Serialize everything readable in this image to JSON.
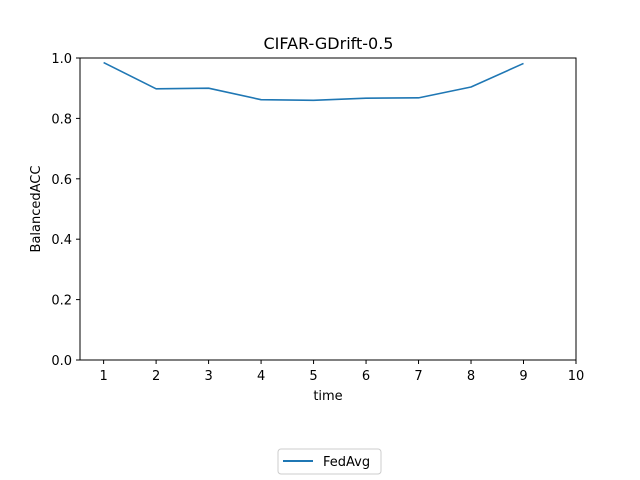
{
  "chart_data": {
    "type": "line",
    "title": "CIFAR-GDrift-0.5",
    "xlabel": "time",
    "ylabel": "BalancedACC",
    "xlim": [
      0.55,
      10
    ],
    "ylim": [
      0,
      1.0
    ],
    "xticks": [
      1,
      2,
      3,
      4,
      5,
      6,
      7,
      8,
      9,
      10
    ],
    "yticks": [
      0.0,
      0.2,
      0.4,
      0.6,
      0.8,
      1.0
    ],
    "ytick_labels": [
      "0.0",
      "0.2",
      "0.4",
      "0.6",
      "0.8",
      "1.0"
    ],
    "grid": false,
    "legend_placement": "bottom-center",
    "series": [
      {
        "name": "FedAvg",
        "color": "#1f77b4",
        "x": [
          1,
          2,
          3,
          4,
          5,
          6,
          7,
          8,
          9
        ],
        "y": [
          0.985,
          0.898,
          0.9,
          0.862,
          0.86,
          0.867,
          0.868,
          0.904,
          0.982
        ]
      }
    ]
  }
}
